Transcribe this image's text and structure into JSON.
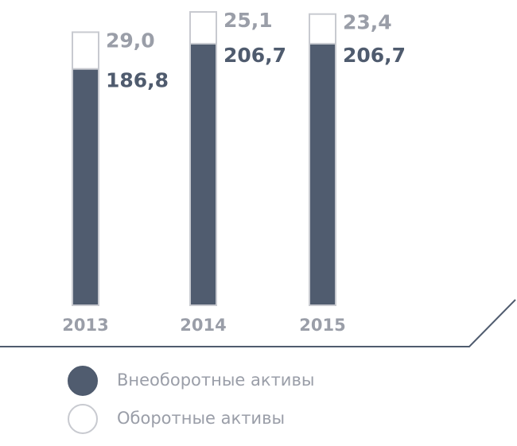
{
  "chart_data": {
    "type": "stacked-bar",
    "categories": [
      "2013",
      "2014",
      "2015"
    ],
    "series": [
      {
        "name": "Внеоборотные активы",
        "color": "#505c6f",
        "values": [
          186.8,
          206.7,
          206.7
        ],
        "value_labels": [
          "186,8",
          "206,7",
          "206,7"
        ]
      },
      {
        "name": "Оборотные активы",
        "color": "#ffffff",
        "values": [
          29.0,
          25.1,
          23.4
        ],
        "value_labels": [
          "29,0",
          "25,1",
          "23,4"
        ]
      }
    ]
  }
}
